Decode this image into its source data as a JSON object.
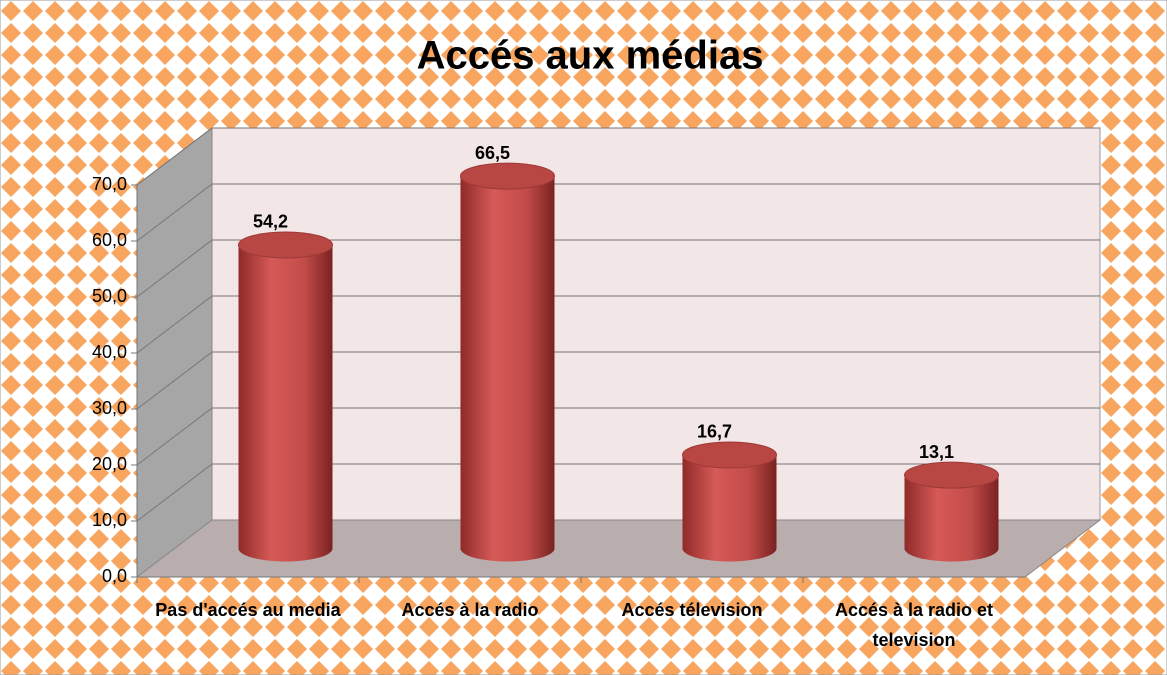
{
  "chart_data": {
    "type": "bar3d",
    "title": "Accés aux médias",
    "categories": [
      "Pas d'accés au media",
      "Accés à la radio",
      "Accés télevision",
      "Accés à la radio et television"
    ],
    "values": [
      54.2,
      66.5,
      16.7,
      13.1
    ],
    "value_labels": [
      "54,2",
      "66,5",
      "16,7",
      "13,1"
    ],
    "color": "#c0504d",
    "ylim": [
      0,
      70
    ],
    "yticks": [
      {
        "value": 0,
        "label": "0,0"
      },
      {
        "value": 10,
        "label": "10,0"
      },
      {
        "value": 20,
        "label": "20,0"
      },
      {
        "value": 30,
        "label": "30,0"
      },
      {
        "value": 40,
        "label": "40,0"
      },
      {
        "value": 50,
        "label": "50,0"
      },
      {
        "value": 60,
        "label": "60,0"
      },
      {
        "value": 70,
        "label": "70,0"
      }
    ],
    "grid": true
  }
}
